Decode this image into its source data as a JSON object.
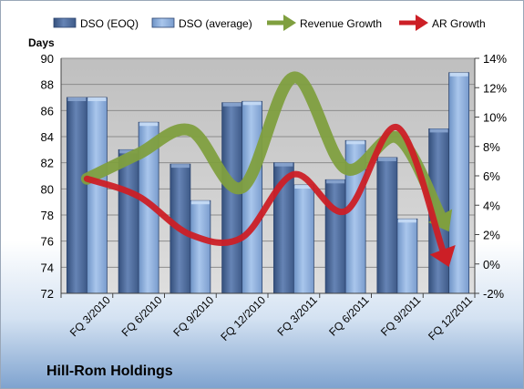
{
  "chart_data": {
    "type": "bar",
    "categories": [
      "FQ 3/2010",
      "FQ 6/2010",
      "FQ 9/2010",
      "FQ 12/2010",
      "FQ 3/2011",
      "FQ 6/2011",
      "FQ 9/2011",
      "FQ 12/2011"
    ],
    "ylabel": "Days",
    "ylim": [
      72,
      90
    ],
    "yticks": [
      72,
      74,
      76,
      78,
      80,
      82,
      84,
      86,
      88,
      90
    ],
    "y2lim": [
      -2,
      14
    ],
    "y2ticks": [
      "-2%",
      "0%",
      "2%",
      "4%",
      "6%",
      "8%",
      "10%",
      "12%",
      "14%"
    ],
    "grid": true,
    "legend_position": "top",
    "series": [
      {
        "name": "DSO (EOQ)",
        "kind": "bar",
        "axis": "left",
        "color": "#4f6d9c",
        "values": [
          87.0,
          83.0,
          81.9,
          86.6,
          82.0,
          80.7,
          82.4,
          84.6
        ]
      },
      {
        "name": "DSO (average)",
        "kind": "bar",
        "axis": "left",
        "color": "#8fb0dc",
        "values": [
          87.0,
          85.1,
          79.1,
          86.7,
          80.3,
          83.7,
          77.7,
          88.9
        ]
      },
      {
        "name": "Revenue Growth",
        "kind": "line",
        "axis": "right",
        "color": "#7f9f3f",
        "values": [
          5.8,
          7.5,
          9.1,
          5.2,
          12.7,
          6.5,
          8.6,
          2.2
        ]
      },
      {
        "name": "AR Growth",
        "kind": "line",
        "axis": "right",
        "color": "#cc1f26",
        "values": [
          5.8,
          4.6,
          2.0,
          1.8,
          6.1,
          3.6,
          9.3,
          -0.2
        ]
      }
    ]
  },
  "footer": {
    "company": "Hill-Rom Holdings"
  }
}
